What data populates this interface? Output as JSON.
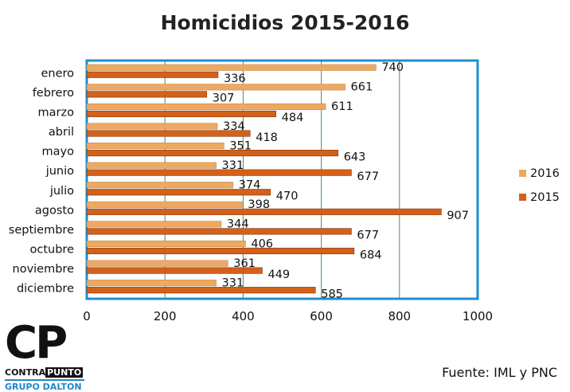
{
  "chart_data": {
    "type": "bar",
    "orientation": "horizontal",
    "title": "Homicidios 2015-2016",
    "categories": [
      "enero",
      "febrero",
      "marzo",
      "abril",
      "mayo",
      "junio",
      "julio",
      "agosto",
      "septiembre",
      "octubre",
      "noviembre",
      "diciembre"
    ],
    "series": [
      {
        "name": "2016",
        "color": "#f0a860",
        "values": [
          740,
          661,
          611,
          334,
          351,
          331,
          374,
          398,
          344,
          406,
          361,
          331
        ]
      },
      {
        "name": "2015",
        "color": "#d4601a",
        "values": [
          336,
          307,
          484,
          418,
          643,
          677,
          470,
          907,
          677,
          684,
          449,
          585
        ]
      }
    ],
    "xlim": [
      0,
      1000
    ],
    "xticks": [
      "0",
      "200",
      "400",
      "600",
      "800",
      "1000"
    ],
    "grid": true,
    "legend": "right"
  },
  "logo": {
    "mark": "CP",
    "contra": "CONTRA",
    "punto": "PUNTO",
    "group": "GRUPO DALTON"
  },
  "source": "Fuente: IML y PNC"
}
